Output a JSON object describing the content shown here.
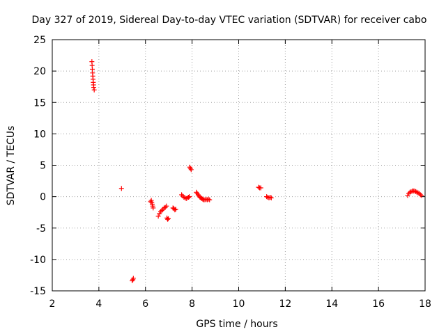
{
  "chart_data": {
    "type": "scatter",
    "title": "Day 327 of 2019, Sidereal Day-to-day VTEC variation (SDTVAR) for receiver cabo",
    "xlabel": "GPS time / hours",
    "ylabel": "SDTVAR / TECUs",
    "xlim": [
      2,
      18
    ],
    "ylim": [
      -15,
      25
    ],
    "xticks": [
      2,
      4,
      6,
      8,
      10,
      12,
      14,
      16,
      18
    ],
    "yticks": [
      -15,
      -10,
      -5,
      0,
      5,
      10,
      15,
      20,
      25
    ],
    "grid": true,
    "marker": "+",
    "series": [
      {
        "name": "SDTVAR",
        "color": "#ff0000",
        "points": [
          [
            3.7,
            21.5
          ],
          [
            3.71,
            20.9
          ],
          [
            3.72,
            20.3
          ],
          [
            3.73,
            19.7
          ],
          [
            3.74,
            19.2
          ],
          [
            3.75,
            18.7
          ],
          [
            3.76,
            18.2
          ],
          [
            3.77,
            17.8
          ],
          [
            3.78,
            17.4
          ],
          [
            3.8,
            17.0
          ],
          [
            4.97,
            1.3
          ],
          [
            5.43,
            -13.4
          ],
          [
            5.46,
            -13.2
          ],
          [
            5.48,
            -13.0
          ],
          [
            6.22,
            -0.8
          ],
          [
            6.25,
            -0.6
          ],
          [
            6.27,
            -0.9
          ],
          [
            6.29,
            -1.2
          ],
          [
            6.31,
            -1.5
          ],
          [
            6.33,
            -1.8
          ],
          [
            6.55,
            -3.1
          ],
          [
            6.6,
            -2.7
          ],
          [
            6.65,
            -2.4
          ],
          [
            6.7,
            -2.2
          ],
          [
            6.75,
            -2.0
          ],
          [
            6.8,
            -1.8
          ],
          [
            6.85,
            -1.7
          ],
          [
            6.9,
            -1.5
          ],
          [
            6.92,
            -3.4
          ],
          [
            6.95,
            -3.6
          ],
          [
            6.98,
            -3.5
          ],
          [
            7.18,
            -1.8
          ],
          [
            7.22,
            -1.9
          ],
          [
            7.26,
            -2.1
          ],
          [
            7.3,
            -2.0
          ],
          [
            7.55,
            0.3
          ],
          [
            7.6,
            0.1
          ],
          [
            7.65,
            -0.1
          ],
          [
            7.7,
            -0.2
          ],
          [
            7.75,
            -0.3
          ],
          [
            7.8,
            -0.2
          ],
          [
            7.85,
            -0.1
          ],
          [
            7.88,
            0.0
          ],
          [
            7.9,
            4.7
          ],
          [
            7.93,
            4.5
          ],
          [
            7.96,
            4.3
          ],
          [
            8.18,
            0.7
          ],
          [
            8.22,
            0.5
          ],
          [
            8.26,
            0.3
          ],
          [
            8.3,
            0.1
          ],
          [
            8.34,
            -0.1
          ],
          [
            8.38,
            -0.2
          ],
          [
            8.42,
            -0.3
          ],
          [
            8.46,
            -0.4
          ],
          [
            8.5,
            -0.5
          ],
          [
            8.55,
            -0.5
          ],
          [
            8.6,
            -0.4
          ],
          [
            8.65,
            -0.5
          ],
          [
            8.7,
            -0.4
          ],
          [
            8.75,
            -0.5
          ],
          [
            10.85,
            1.5
          ],
          [
            10.9,
            1.4
          ],
          [
            10.95,
            1.4
          ],
          [
            11.2,
            0.0
          ],
          [
            11.25,
            -0.1
          ],
          [
            11.3,
            -0.2
          ],
          [
            11.35,
            -0.1
          ],
          [
            11.4,
            -0.2
          ],
          [
            17.25,
            0.2
          ],
          [
            17.3,
            0.5
          ],
          [
            17.35,
            0.7
          ],
          [
            17.4,
            0.8
          ],
          [
            17.45,
            0.9
          ],
          [
            17.5,
            0.9
          ],
          [
            17.55,
            0.9
          ],
          [
            17.6,
            0.8
          ],
          [
            17.65,
            0.7
          ],
          [
            17.7,
            0.6
          ],
          [
            17.75,
            0.5
          ],
          [
            17.8,
            0.3
          ],
          [
            17.85,
            0.2
          ]
        ]
      }
    ]
  }
}
